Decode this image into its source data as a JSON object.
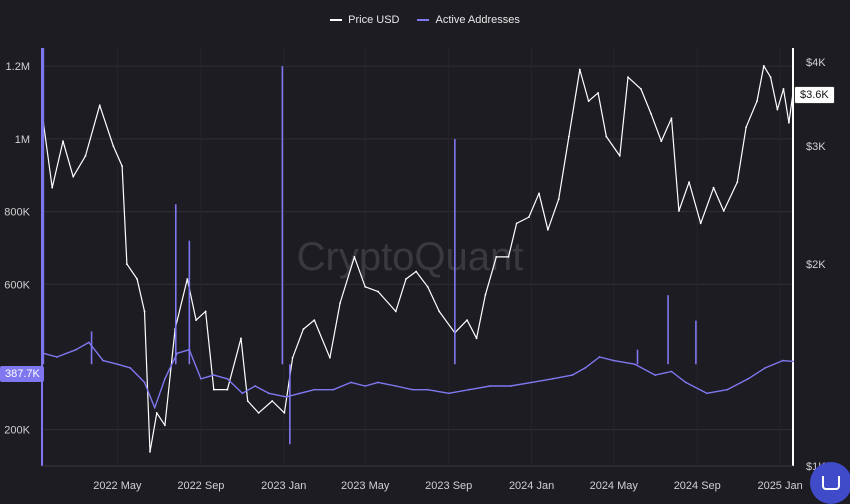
{
  "chart_data": {
    "type": "line",
    "watermark": "CryptoQuant",
    "legend": [
      {
        "name": "Price USD",
        "color": "#ffffff"
      },
      {
        "name": "Active Addresses",
        "color": "#7f77f0"
      }
    ],
    "x_ticks": [
      "2022 May",
      "2022 Sep",
      "2023 Jan",
      "2023 May",
      "2023 Sep",
      "2024 Jan",
      "2024 May",
      "2024 Sep",
      "2025 Jan"
    ],
    "x_range": [
      "2022-01-10",
      "2025-01-20"
    ],
    "left_axis": {
      "ticks": [
        "200K",
        "600K",
        "800K",
        "1M",
        "1.2M"
      ],
      "ylim": [
        100000,
        1250000
      ]
    },
    "right_axis": {
      "ticks": [
        "$1K",
        "$2K",
        "$3K",
        "$4K"
      ],
      "ylim": [
        1000,
        4200
      ]
    },
    "current_values": {
      "active_addresses_label": "387.7K",
      "price_label": "$3.6K"
    },
    "series": [
      {
        "name": "Price USD",
        "axis": "right",
        "points": [
          [
            "2022-01-12",
            3250
          ],
          [
            "2022-01-25",
            2600
          ],
          [
            "2022-02-10",
            3050
          ],
          [
            "2022-02-25",
            2700
          ],
          [
            "2022-03-15",
            2900
          ],
          [
            "2022-04-05",
            3450
          ],
          [
            "2022-04-25",
            3000
          ],
          [
            "2022-05-08",
            2800
          ],
          [
            "2022-05-15",
            2000
          ],
          [
            "2022-05-30",
            1900
          ],
          [
            "2022-06-10",
            1700
          ],
          [
            "2022-06-18",
            1050
          ],
          [
            "2022-06-28",
            1200
          ],
          [
            "2022-07-10",
            1150
          ],
          [
            "2022-07-25",
            1600
          ],
          [
            "2022-08-12",
            1900
          ],
          [
            "2022-08-25",
            1650
          ],
          [
            "2022-09-08",
            1700
          ],
          [
            "2022-09-20",
            1300
          ],
          [
            "2022-10-10",
            1300
          ],
          [
            "2022-10-30",
            1550
          ],
          [
            "2022-11-09",
            1250
          ],
          [
            "2022-11-25",
            1200
          ],
          [
            "2022-12-15",
            1250
          ],
          [
            "2023-01-02",
            1200
          ],
          [
            "2023-01-14",
            1450
          ],
          [
            "2023-01-30",
            1600
          ],
          [
            "2023-02-15",
            1650
          ],
          [
            "2023-03-10",
            1450
          ],
          [
            "2023-03-25",
            1750
          ],
          [
            "2023-04-15",
            2050
          ],
          [
            "2023-05-01",
            1850
          ],
          [
            "2023-05-20",
            1820
          ],
          [
            "2023-06-15",
            1700
          ],
          [
            "2023-06-30",
            1900
          ],
          [
            "2023-07-15",
            1950
          ],
          [
            "2023-08-01",
            1850
          ],
          [
            "2023-08-18",
            1700
          ],
          [
            "2023-09-10",
            1580
          ],
          [
            "2023-09-28",
            1650
          ],
          [
            "2023-10-12",
            1550
          ],
          [
            "2023-10-25",
            1800
          ],
          [
            "2023-11-10",
            2050
          ],
          [
            "2023-11-28",
            2050
          ],
          [
            "2023-12-10",
            2300
          ],
          [
            "2023-12-28",
            2350
          ],
          [
            "2024-01-12",
            2550
          ],
          [
            "2024-01-25",
            2250
          ],
          [
            "2024-02-10",
            2500
          ],
          [
            "2024-02-25",
            3100
          ],
          [
            "2024-03-12",
            3900
          ],
          [
            "2024-03-25",
            3500
          ],
          [
            "2024-04-08",
            3600
          ],
          [
            "2024-04-20",
            3100
          ],
          [
            "2024-05-10",
            2900
          ],
          [
            "2024-05-22",
            3800
          ],
          [
            "2024-06-10",
            3650
          ],
          [
            "2024-06-25",
            3350
          ],
          [
            "2024-07-10",
            3050
          ],
          [
            "2024-07-25",
            3300
          ],
          [
            "2024-08-05",
            2400
          ],
          [
            "2024-08-20",
            2650
          ],
          [
            "2024-09-06",
            2300
          ],
          [
            "2024-09-25",
            2600
          ],
          [
            "2024-10-10",
            2400
          ],
          [
            "2024-10-30",
            2650
          ],
          [
            "2024-11-12",
            3200
          ],
          [
            "2024-11-28",
            3500
          ],
          [
            "2024-12-08",
            3950
          ],
          [
            "2024-12-18",
            3800
          ],
          [
            "2024-12-28",
            3400
          ],
          [
            "2025-01-06",
            3650
          ],
          [
            "2025-01-14",
            3250
          ],
          [
            "2025-01-20",
            3600
          ]
        ]
      },
      {
        "name": "Active Addresses",
        "axis": "left",
        "points": [
          [
            "2022-01-12",
            410000
          ],
          [
            "2022-02-01",
            400000
          ],
          [
            "2022-03-01",
            420000
          ],
          [
            "2022-03-20",
            440000
          ],
          [
            "2022-04-10",
            390000
          ],
          [
            "2022-05-01",
            380000
          ],
          [
            "2022-05-20",
            370000
          ],
          [
            "2022-06-10",
            330000
          ],
          [
            "2022-06-25",
            260000
          ],
          [
            "2022-07-10",
            340000
          ],
          [
            "2022-07-28",
            410000
          ],
          [
            "2022-08-15",
            420000
          ],
          [
            "2022-09-01",
            340000
          ],
          [
            "2022-09-20",
            350000
          ],
          [
            "2022-10-10",
            340000
          ],
          [
            "2022-11-01",
            300000
          ],
          [
            "2022-11-20",
            320000
          ],
          [
            "2022-12-10",
            300000
          ],
          [
            "2023-01-05",
            290000
          ],
          [
            "2023-01-25",
            300000
          ],
          [
            "2023-02-15",
            310000
          ],
          [
            "2023-03-15",
            310000
          ],
          [
            "2023-04-10",
            330000
          ],
          [
            "2023-05-01",
            320000
          ],
          [
            "2023-05-20",
            330000
          ],
          [
            "2023-06-15",
            320000
          ],
          [
            "2023-07-10",
            310000
          ],
          [
            "2023-08-01",
            310000
          ],
          [
            "2023-09-01",
            300000
          ],
          [
            "2023-10-01",
            310000
          ],
          [
            "2023-11-01",
            320000
          ],
          [
            "2023-12-01",
            320000
          ],
          [
            "2024-01-01",
            330000
          ],
          [
            "2024-02-01",
            340000
          ],
          [
            "2024-03-01",
            350000
          ],
          [
            "2024-03-20",
            370000
          ],
          [
            "2024-04-10",
            400000
          ],
          [
            "2024-05-01",
            390000
          ],
          [
            "2024-06-01",
            380000
          ],
          [
            "2024-07-01",
            350000
          ],
          [
            "2024-07-25",
            360000
          ],
          [
            "2024-08-15",
            330000
          ],
          [
            "2024-09-15",
            300000
          ],
          [
            "2024-10-15",
            310000
          ],
          [
            "2024-11-15",
            340000
          ],
          [
            "2024-12-10",
            370000
          ],
          [
            "2025-01-05",
            390000
          ],
          [
            "2025-01-20",
            387700
          ]
        ],
        "spikes": [
          [
            "2022-01-12",
            1250000
          ],
          [
            "2022-07-26",
            820000
          ],
          [
            "2022-12-30",
            1200000
          ],
          [
            "2023-09-10",
            1000000
          ],
          [
            "2022-08-15",
            720000
          ],
          [
            "2023-01-10",
            160000
          ],
          [
            "2024-07-20",
            570000
          ],
          [
            "2024-08-30",
            500000
          ],
          [
            "2024-06-05",
            420000
          ],
          [
            "2022-03-24",
            470000
          ]
        ]
      }
    ]
  }
}
